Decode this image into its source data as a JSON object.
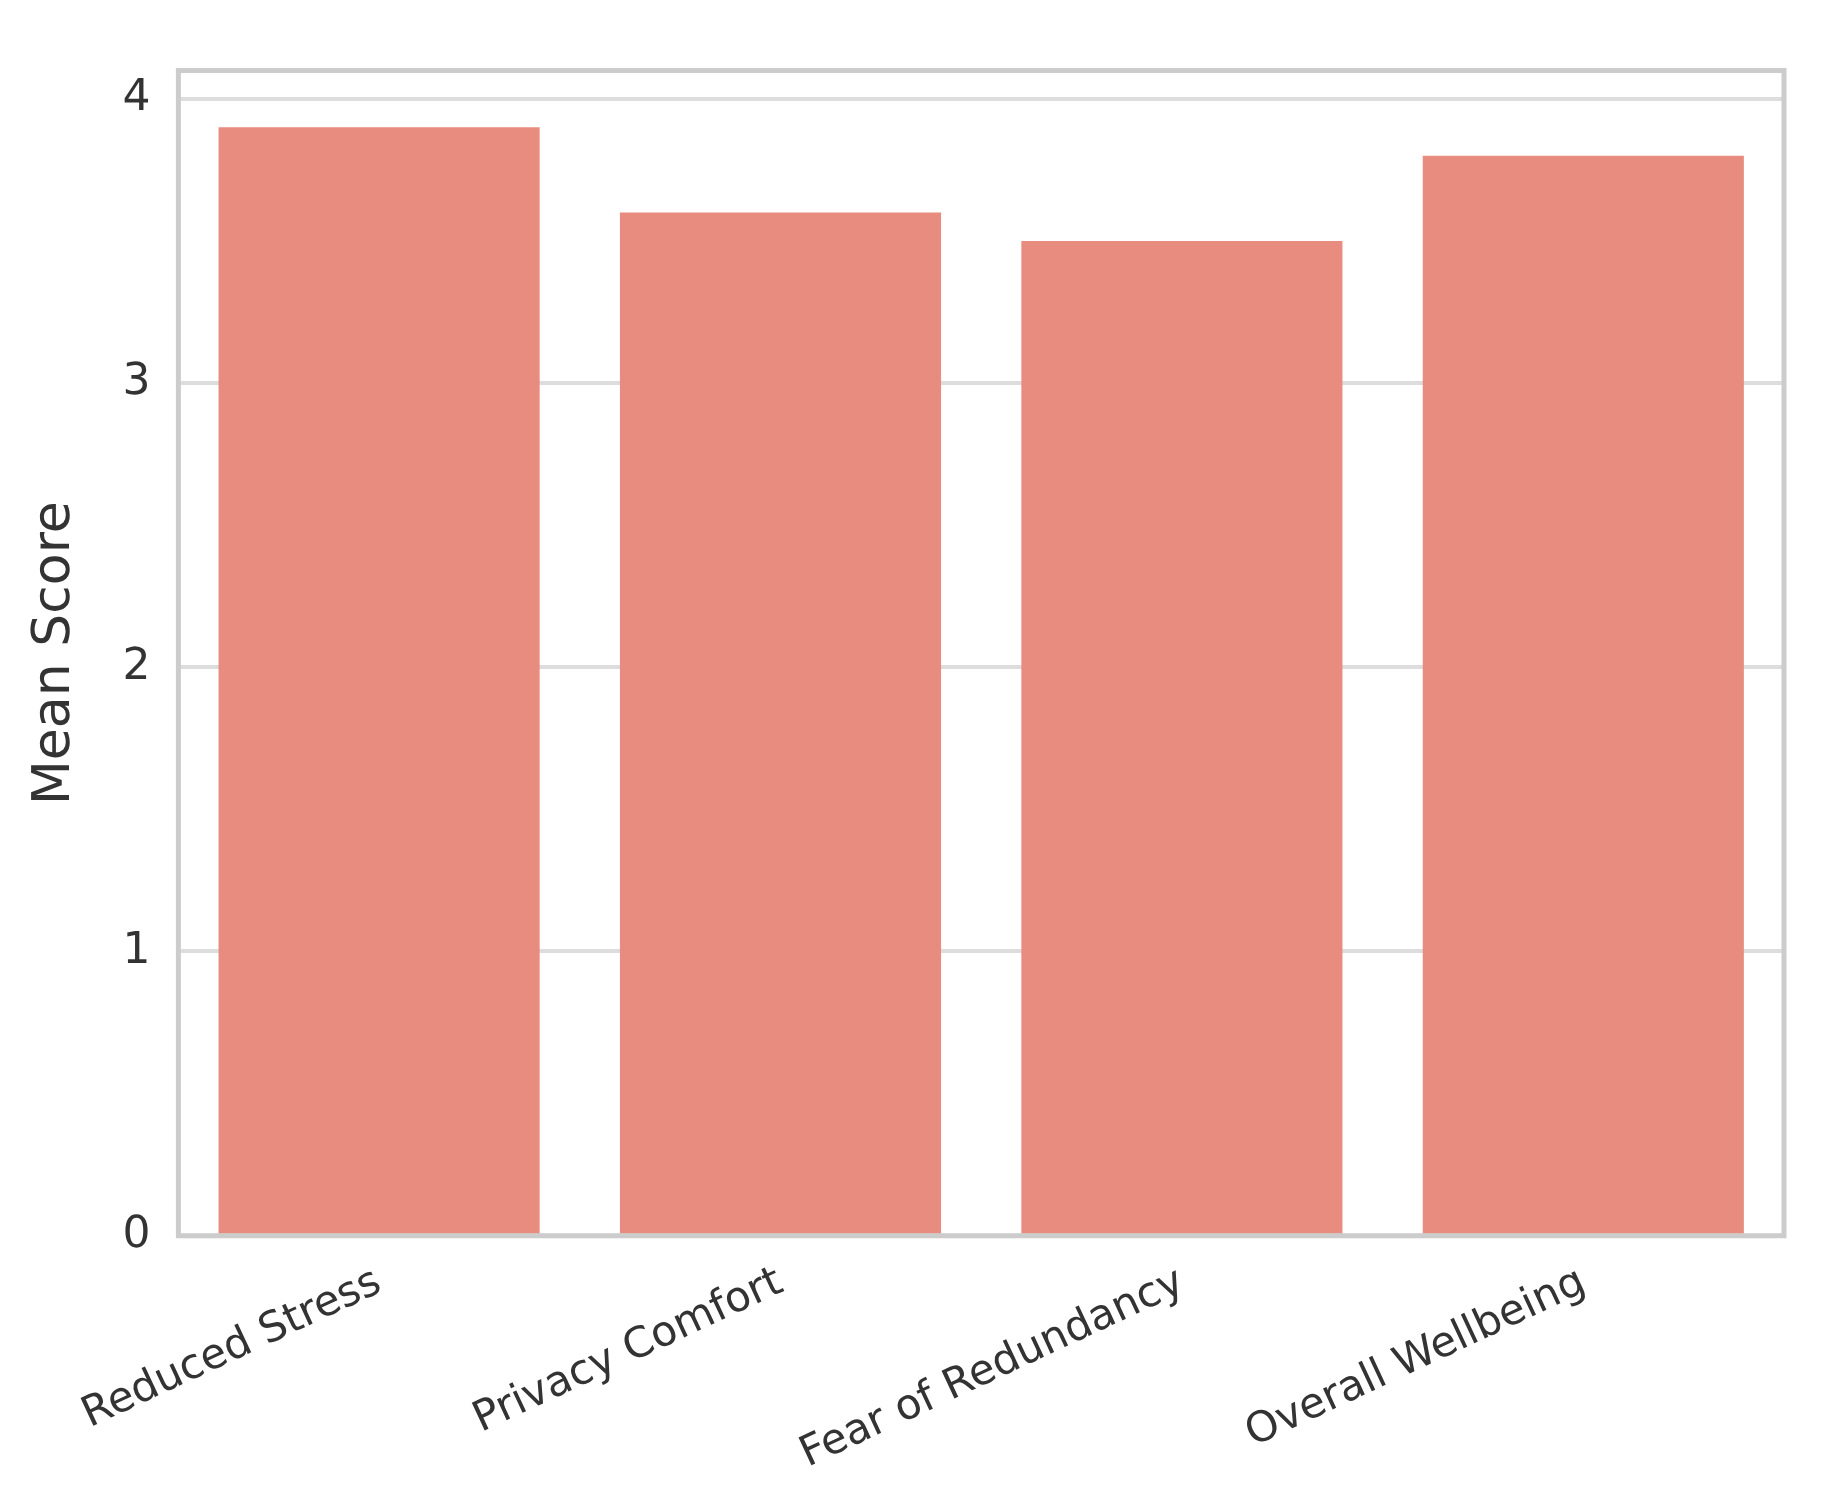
{
  "chart_data": {
    "type": "bar",
    "ylabel": "Mean Score",
    "categories": [
      "Reduced Stress",
      "Privacy Comfort",
      "Fear of Redundancy",
      "Overall Wellbeing"
    ],
    "values": [
      3.9,
      3.6,
      3.5,
      3.8
    ],
    "color": "#e88c7f",
    "ylim": [
      0,
      4.1
    ],
    "yticks": [
      0,
      1,
      2,
      3,
      4
    ],
    "grid": "y",
    "legend": false
  }
}
